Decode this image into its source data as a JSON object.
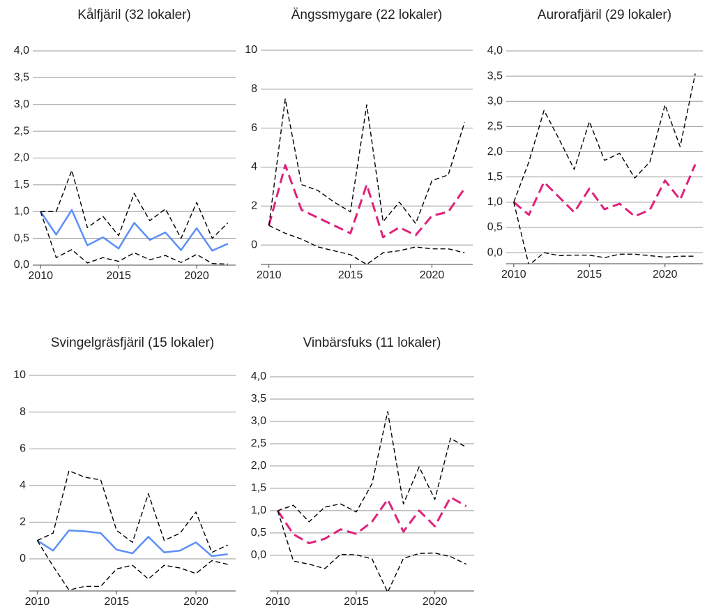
{
  "chart_data": [
    {
      "type": "line",
      "title": "Kålfjäril (32 lokaler)",
      "x": [
        2010,
        2011,
        2012,
        2013,
        2014,
        2015,
        2016,
        2017,
        2018,
        2019,
        2020,
        2021,
        2022
      ],
      "xlim": [
        2009.5,
        2022.5
      ],
      "xticks": [
        2010,
        2015,
        2020
      ],
      "ylim": [
        0,
        4
      ],
      "yticks": [
        {
          "value": 0,
          "label": "0,0"
        },
        {
          "value": 0.5,
          "label": "0,5"
        },
        {
          "value": 1,
          "label": "1,0"
        },
        {
          "value": 1.5,
          "label": "1,5"
        },
        {
          "value": 2,
          "label": "2,0"
        },
        {
          "value": 2.5,
          "label": "2,5"
        },
        {
          "value": 3,
          "label": "3,0"
        },
        {
          "value": 3.5,
          "label": "3,5"
        },
        {
          "value": 4,
          "label": "4,0"
        }
      ],
      "grid": true,
      "series": [
        {
          "color": "#5b8ff9",
          "dash": "solid",
          "values": [
            1.0,
            0.57,
            1.03,
            0.37,
            0.52,
            0.31,
            0.79,
            0.47,
            0.61,
            0.28,
            0.69,
            0.27,
            0.4
          ]
        },
        {
          "color": "#000000",
          "dash": "dashed",
          "values": [
            1.0,
            1.0,
            1.77,
            0.7,
            0.91,
            0.55,
            1.34,
            0.83,
            1.05,
            0.5,
            1.17,
            0.5,
            0.79
          ]
        },
        {
          "color": "#000000",
          "dash": "dashed",
          "values": [
            1.0,
            0.14,
            0.29,
            0.04,
            0.14,
            0.07,
            0.23,
            0.1,
            0.18,
            0.05,
            0.2,
            0.03,
            0.02
          ]
        }
      ]
    },
    {
      "type": "line",
      "title": "Ängssmygare (22 lokaler)",
      "x": [
        2010,
        2011,
        2012,
        2013,
        2014,
        2015,
        2016,
        2017,
        2018,
        2019,
        2020,
        2021,
        2022
      ],
      "xlim": [
        2009.5,
        2022.5
      ],
      "xticks": [
        2010,
        2015,
        2020
      ],
      "ylim": [
        -1,
        10
      ],
      "yticks": [
        0,
        2,
        4,
        6,
        8,
        10
      ],
      "grid": true,
      "series": [
        {
          "color": "#e0217a",
          "dash": "bold-dashed",
          "values": [
            1.0,
            4.1,
            1.8,
            1.4,
            1.0,
            0.6,
            3.1,
            0.4,
            0.9,
            0.5,
            1.5,
            1.7,
            2.9
          ]
        },
        {
          "color": "#000000",
          "dash": "dashed",
          "values": [
            1.0,
            7.5,
            3.1,
            2.8,
            2.2,
            1.7,
            7.2,
            1.2,
            2.2,
            1.1,
            3.3,
            3.6,
            6.3
          ]
        },
        {
          "color": "#000000",
          "dash": "dashed",
          "values": [
            1.0,
            0.6,
            0.3,
            -0.1,
            -0.3,
            -0.5,
            -1.0,
            -0.4,
            -0.3,
            -0.1,
            -0.2,
            -0.2,
            -0.4
          ]
        }
      ]
    },
    {
      "type": "line",
      "title": "Aurorafjäril (29 lokaler)",
      "x": [
        2010,
        2011,
        2012,
        2013,
        2014,
        2015,
        2016,
        2017,
        2018,
        2019,
        2020,
        2021,
        2022
      ],
      "xlim": [
        2009.5,
        2022.5
      ],
      "xticks": [
        2010,
        2015,
        2020
      ],
      "ylim": [
        -0.22,
        4
      ],
      "yticks": [
        {
          "value": 0,
          "label": "0,0"
        },
        {
          "value": 0.5,
          "label": "0,5"
        },
        {
          "value": 1,
          "label": "1,0"
        },
        {
          "value": 1.5,
          "label": "1,5"
        },
        {
          "value": 2,
          "label": "2,0"
        },
        {
          "value": 2.5,
          "label": "2,5"
        },
        {
          "value": 3,
          "label": "3,0"
        },
        {
          "value": 3.5,
          "label": "3,5"
        },
        {
          "value": 4,
          "label": "4,0"
        }
      ],
      "grid": true,
      "series": [
        {
          "color": "#e0217a",
          "dash": "bold-dashed",
          "values": [
            1.0,
            0.75,
            1.4,
            1.1,
            0.8,
            1.27,
            0.86,
            0.97,
            0.72,
            0.85,
            1.43,
            1.05,
            1.75
          ]
        },
        {
          "color": "#000000",
          "dash": "dashed",
          "values": [
            1.0,
            1.8,
            2.82,
            2.25,
            1.65,
            2.6,
            1.83,
            1.97,
            1.48,
            1.8,
            2.93,
            2.1,
            3.55
          ]
        },
        {
          "color": "#000000",
          "dash": "dashed",
          "values": [
            1.0,
            -0.25,
            0.0,
            -0.06,
            -0.05,
            -0.05,
            -0.1,
            -0.03,
            -0.03,
            -0.06,
            -0.09,
            -0.07,
            -0.07
          ]
        }
      ]
    },
    {
      "type": "line",
      "title": "Svingelgräsfjäril (15 lokaler)",
      "x": [
        2010,
        2011,
        2012,
        2013,
        2014,
        2015,
        2016,
        2017,
        2018,
        2019,
        2020,
        2021,
        2022
      ],
      "xlim": [
        2009.5,
        2022.5
      ],
      "xticks": [
        2010,
        2015,
        2020
      ],
      "ylim": [
        -1.75,
        10
      ],
      "yticks": [
        0,
        2,
        4,
        6,
        8,
        10
      ],
      "grid": true,
      "series": [
        {
          "color": "#5b8ff9",
          "dash": "solid",
          "values": [
            1.0,
            0.45,
            1.55,
            1.5,
            1.4,
            0.5,
            0.3,
            1.2,
            0.35,
            0.45,
            0.9,
            0.15,
            0.25
          ]
        },
        {
          "color": "#000000",
          "dash": "dashed",
          "values": [
            1.0,
            1.4,
            4.8,
            4.45,
            4.3,
            1.55,
            0.9,
            3.55,
            1.0,
            1.4,
            2.55,
            0.35,
            0.75
          ]
        },
        {
          "color": "#000000",
          "dash": "dashed",
          "values": [
            1.0,
            -0.4,
            -1.7,
            -1.5,
            -1.5,
            -0.55,
            -0.35,
            -1.1,
            -0.35,
            -0.5,
            -0.8,
            -0.1,
            -0.3
          ]
        }
      ]
    },
    {
      "type": "line",
      "title": "Vinbärsfuks (11 lokaler)",
      "x": [
        2010,
        2011,
        2012,
        2013,
        2014,
        2015,
        2016,
        2017,
        2018,
        2019,
        2020,
        2021,
        2022
      ],
      "xlim": [
        2009.5,
        2022.5
      ],
      "xticks": [
        2010,
        2015,
        2020
      ],
      "ylim": [
        -0.8,
        4
      ],
      "yticks": [
        {
          "value": 0,
          "label": "0,0"
        },
        {
          "value": 0.5,
          "label": "0,5"
        },
        {
          "value": 1,
          "label": "1,0"
        },
        {
          "value": 1.5,
          "label": "1,5"
        },
        {
          "value": 2,
          "label": "2,0"
        },
        {
          "value": 2.5,
          "label": "2,5"
        },
        {
          "value": 3,
          "label": "3,0"
        },
        {
          "value": 3.5,
          "label": "3,5"
        },
        {
          "value": 4,
          "label": "4,0"
        }
      ],
      "grid": true,
      "series": [
        {
          "color": "#e0217a",
          "dash": "bold-dashed",
          "values": [
            1.0,
            0.47,
            0.27,
            0.37,
            0.58,
            0.48,
            0.75,
            1.25,
            0.53,
            1.0,
            0.65,
            1.3,
            1.1
          ]
        },
        {
          "color": "#000000",
          "dash": "dashed",
          "values": [
            1.0,
            1.12,
            0.75,
            1.08,
            1.15,
            0.97,
            1.6,
            3.22,
            1.15,
            1.98,
            1.25,
            2.62,
            2.42
          ]
        },
        {
          "color": "#000000",
          "dash": "dashed",
          "values": [
            1.0,
            -0.13,
            -0.2,
            -0.3,
            0.02,
            0.01,
            -0.08,
            -0.83,
            -0.07,
            0.04,
            0.05,
            -0.03,
            -0.2
          ]
        }
      ]
    }
  ]
}
